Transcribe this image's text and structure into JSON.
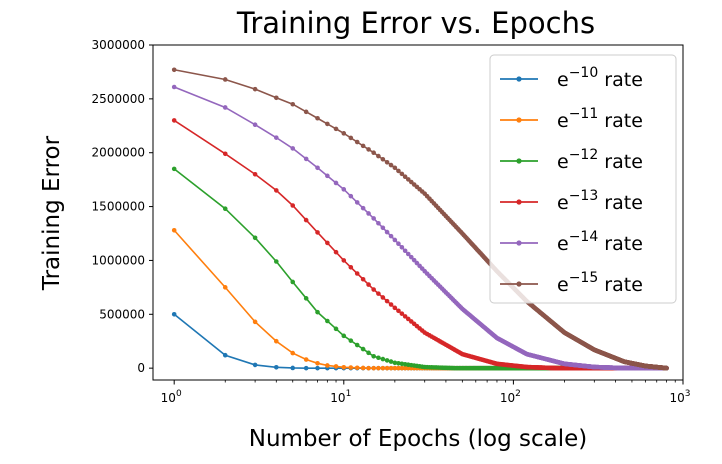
{
  "chart_data": {
    "type": "line",
    "title": "Training Error vs. Epochs",
    "xlabel": "Number of Epochs (log scale)",
    "ylabel": "Training Error",
    "x_scale": "log",
    "xlim": [
      0.75,
      1000
    ],
    "ylim": [
      -110000,
      3000000
    ],
    "yticks": [
      0,
      500000,
      1000000,
      1500000,
      2000000,
      2500000,
      3000000
    ],
    "ytick_labels": [
      "0",
      "500000",
      "1000000",
      "1500000",
      "2000000",
      "2500000",
      "3000000"
    ],
    "xticks": [
      {
        "value": 1,
        "base": "10",
        "exp": "0"
      },
      {
        "value": 10,
        "base": "10",
        "exp": "1"
      },
      {
        "value": 100,
        "base": "10",
        "exp": "2"
      },
      {
        "value": 1000,
        "base": "10",
        "exp": "3"
      }
    ],
    "grid": false,
    "legend_position": "top-right",
    "x_range": [
      1,
      800
    ],
    "series": [
      {
        "name": "e−10 rate",
        "base": "e",
        "exp": "−10",
        "suffix": " rate",
        "color": "#1f77b4",
        "points": [
          [
            1,
            500000
          ],
          [
            2,
            120000
          ],
          [
            3,
            30000
          ],
          [
            4,
            8000
          ],
          [
            5,
            2000
          ],
          [
            6,
            0
          ],
          [
            800,
            0
          ]
        ]
      },
      {
        "name": "e−11 rate",
        "base": "e",
        "exp": "−11",
        "suffix": " rate",
        "color": "#ff7f0e",
        "points": [
          [
            1,
            1280000
          ],
          [
            2,
            750000
          ],
          [
            3,
            430000
          ],
          [
            4,
            250000
          ],
          [
            5,
            140000
          ],
          [
            6,
            80000
          ],
          [
            7,
            45000
          ],
          [
            8,
            25000
          ],
          [
            10,
            8000
          ],
          [
            14,
            0
          ],
          [
            800,
            0
          ]
        ]
      },
      {
        "name": "e−12 rate",
        "base": "e",
        "exp": "−12",
        "suffix": " rate",
        "color": "#2ca02c",
        "points": [
          [
            1,
            1850000
          ],
          [
            2,
            1480000
          ],
          [
            3,
            1210000
          ],
          [
            4,
            990000
          ],
          [
            5,
            800000
          ],
          [
            7,
            520000
          ],
          [
            10,
            300000
          ],
          [
            15,
            110000
          ],
          [
            20,
            50000
          ],
          [
            30,
            10000
          ],
          [
            45,
            0
          ],
          [
            800,
            0
          ]
        ]
      },
      {
        "name": "e−13 rate",
        "base": "e",
        "exp": "−13",
        "suffix": " rate",
        "color": "#d62728",
        "points": [
          [
            1,
            2300000
          ],
          [
            2,
            1990000
          ],
          [
            3,
            1800000
          ],
          [
            4,
            1650000
          ],
          [
            5,
            1510000
          ],
          [
            7,
            1260000
          ],
          [
            10,
            1000000
          ],
          [
            15,
            730000
          ],
          [
            20,
            560000
          ],
          [
            30,
            330000
          ],
          [
            50,
            130000
          ],
          [
            80,
            40000
          ],
          [
            120,
            10000
          ],
          [
            180,
            0
          ],
          [
            800,
            0
          ]
        ]
      },
      {
        "name": "e−14 rate",
        "base": "e",
        "exp": "−14",
        "suffix": " rate",
        "color": "#9467bd",
        "points": [
          [
            1,
            2610000
          ],
          [
            2,
            2420000
          ],
          [
            3,
            2260000
          ],
          [
            4,
            2140000
          ],
          [
            5,
            2040000
          ],
          [
            7,
            1860000
          ],
          [
            10,
            1660000
          ],
          [
            15,
            1390000
          ],
          [
            20,
            1190000
          ],
          [
            30,
            900000
          ],
          [
            50,
            550000
          ],
          [
            80,
            280000
          ],
          [
            120,
            130000
          ],
          [
            200,
            40000
          ],
          [
            300,
            10000
          ],
          [
            450,
            0
          ],
          [
            800,
            0
          ]
        ]
      },
      {
        "name": "e−15 rate",
        "base": "e",
        "exp": "−15",
        "suffix": " rate",
        "color": "#8c564b",
        "points": [
          [
            1,
            2770000
          ],
          [
            2,
            2680000
          ],
          [
            3,
            2590000
          ],
          [
            4,
            2510000
          ],
          [
            5,
            2450000
          ],
          [
            7,
            2320000
          ],
          [
            10,
            2180000
          ],
          [
            15,
            2000000
          ],
          [
            20,
            1860000
          ],
          [
            30,
            1620000
          ],
          [
            50,
            1250000
          ],
          [
            80,
            900000
          ],
          [
            120,
            620000
          ],
          [
            200,
            330000
          ],
          [
            300,
            170000
          ],
          [
            450,
            60000
          ],
          [
            600,
            20000
          ],
          [
            800,
            0
          ]
        ]
      }
    ]
  }
}
